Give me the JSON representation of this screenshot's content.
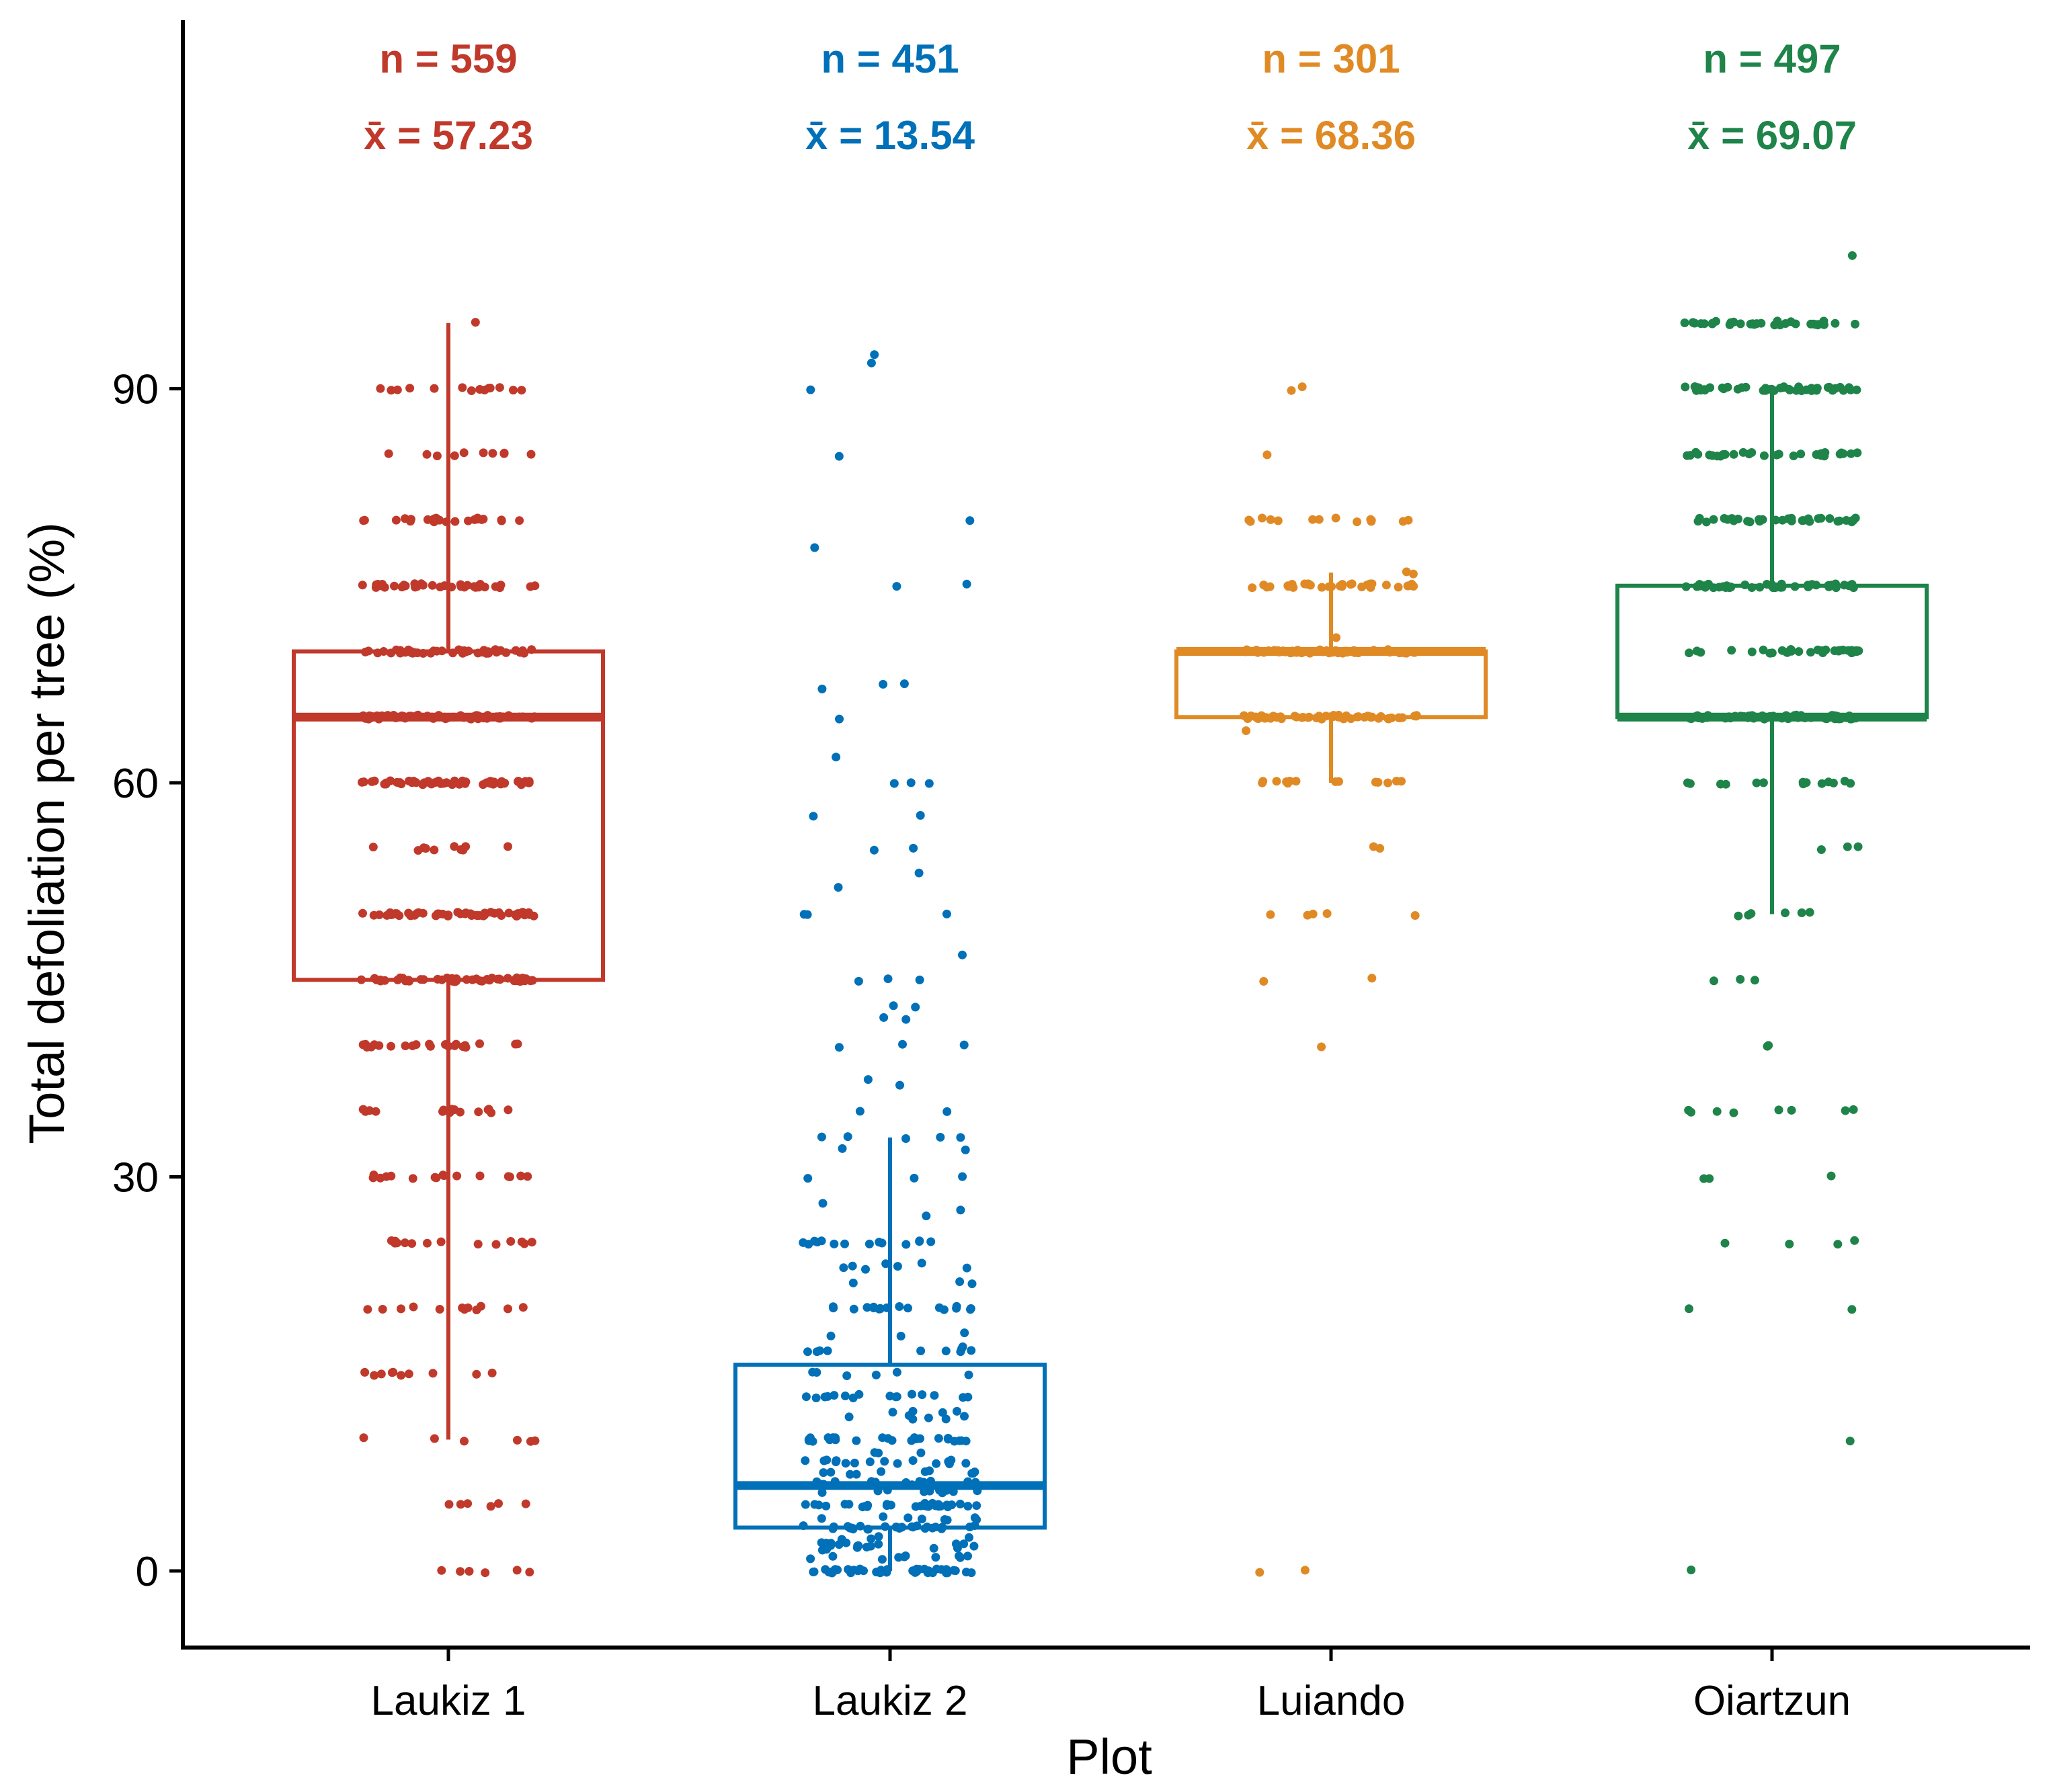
{
  "chart_data": {
    "type": "box-jitter",
    "xlabel": "Plot",
    "ylabel": "Total defoliation per tree (%)",
    "ylim": [
      -5,
      115
    ],
    "yticks": [
      0,
      30,
      60,
      90
    ],
    "grid": false,
    "categories": [
      "Laukiz 1",
      "Laukiz 2",
      "Luiando",
      "Oiartzun"
    ],
    "colors": [
      "#C0392B",
      "#0070B8",
      "#E08A25",
      "#1E8449"
    ],
    "annotations": [
      {
        "n": "n = 559",
        "mean": "x̄ = 57.23"
      },
      {
        "n": "n = 451",
        "mean": "x̄ = 13.54"
      },
      {
        "n": "n = 301",
        "mean": "x̄ = 68.36"
      },
      {
        "n": "n = 497",
        "mean": "x̄ = 69.07"
      }
    ],
    "boxes": [
      {
        "q1": 45,
        "median": 65,
        "q3": 70,
        "whisker_low": 10,
        "whisker_high": 95
      },
      {
        "q1": 3.3,
        "median": 6.5,
        "q3": 15.7,
        "whisker_low": 0,
        "whisker_high": 33
      },
      {
        "q1": 65,
        "median": 70,
        "q3": 70,
        "whisker_low": 60,
        "whisker_high": 76
      },
      {
        "q1": 65,
        "median": 65,
        "q3": 75,
        "whisker_low": 50,
        "whisker_high": 90
      }
    ],
    "points": [
      {
        "values": [
          95,
          90,
          85,
          80,
          75,
          70,
          65,
          60,
          55,
          50,
          45,
          40,
          35,
          30,
          25,
          20,
          15,
          10,
          5,
          0
        ],
        "counts": [
          1,
          14,
          10,
          22,
          36,
          48,
          60,
          55,
          10,
          52,
          48,
          22,
          16,
          16,
          14,
          12,
          10,
          6,
          6,
          6
        ]
      },
      {
        "values": [
          92.5,
          92,
          90,
          85,
          80,
          78,
          75,
          67.5,
          67,
          65,
          62,
          60,
          57.5,
          55,
          53,
          52,
          50,
          47,
          45,
          43,
          42,
          40,
          37.5,
          37,
          35,
          33,
          32,
          30,
          28,
          27.5,
          27,
          25,
          23.3,
          23,
          22,
          20,
          18,
          17,
          16.7,
          15,
          13.3,
          12,
          11.7,
          10,
          9,
          8.3,
          7.5,
          6.7,
          6,
          5,
          4,
          3.3,
          2.5,
          2,
          1.7,
          1,
          0
        ],
        "counts": [
          1,
          1,
          1,
          1,
          1,
          1,
          2,
          2,
          1,
          1,
          1,
          3,
          2,
          2,
          1,
          1,
          3,
          1,
          3,
          2,
          2,
          3,
          1,
          1,
          2,
          5,
          2,
          3,
          1,
          1,
          1,
          14,
          4,
          3,
          3,
          18,
          3,
          2,
          8,
          6,
          16,
          4,
          6,
          28,
          3,
          16,
          10,
          16,
          10,
          30,
          8,
          28,
          4,
          14,
          6,
          10,
          40
        ]
      },
      {
        "values": [
          90,
          85,
          80,
          76,
          75,
          71,
          70,
          65,
          64,
          60,
          55,
          50,
          45,
          40,
          0
        ],
        "counts": [
          2,
          1,
          14,
          2,
          32,
          1,
          56,
          60,
          1,
          14,
          2,
          5,
          2,
          1,
          2
        ]
      },
      {
        "values": [
          100,
          95,
          90,
          85,
          80,
          75,
          70,
          65,
          60,
          55,
          50,
          45,
          40,
          35,
          30,
          25,
          20,
          10,
          0
        ],
        "counts": [
          1,
          34,
          44,
          30,
          34,
          44,
          32,
          70,
          14,
          3,
          6,
          3,
          2,
          8,
          3,
          4,
          2,
          1,
          1
        ]
      }
    ]
  }
}
